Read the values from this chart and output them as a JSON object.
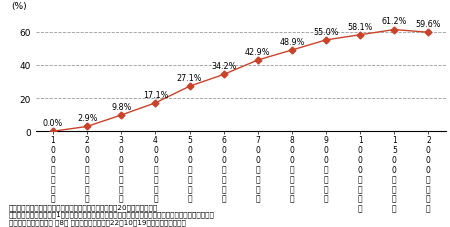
{
  "x_indices": [
    0,
    1,
    2,
    3,
    4,
    5,
    6,
    7,
    8,
    9,
    10,
    11
  ],
  "values": [
    0.0,
    2.9,
    9.8,
    17.1,
    27.1,
    34.2,
    42.9,
    48.9,
    55.0,
    58.1,
    61.2,
    59.6
  ],
  "x_labels": [
    "1\n0\n0\n万\n円\n以\n下",
    "2\n0\n0\n万\n円\n以\n下",
    "3\n0\n0\n万\n円\n以\n下",
    "4\n0\n0\n万\n円\n以\n下",
    "5\n0\n0\n万\n円\n以\n下",
    "6\n0\n0\n万\n円\n以\n下",
    "7\n0\n0\n万\n円\n以\n下",
    "8\n0\n0\n万\n円\n以\n下",
    "9\n0\n0\n万\n円\n以\n下",
    "1\n0\n0\n0\n万\n円\n以\n下",
    "1\n5\n0\n0\n万\n円\n以\n下",
    "2\n0\n0\n0\n万\n円\n以\n下"
  ],
  "line_color": "#c9432b",
  "marker": "D",
  "marker_size": 3.5,
  "ylim": [
    0,
    70
  ],
  "yticks": [
    0,
    20,
    40,
    60
  ],
  "ylabel": "(%)",
  "grid_color": "#999999",
  "grid_style": "--",
  "note_lines": [
    "資料：国税庁「税務統計から見た民間給与の実態（平成20年分）」より。",
    "注）「年末調整を行った1年を通じて勤務した給与所得者」の総数に対する配偶者控除の適用者の割合。",
    "出典）政府税制調査会 第8回 専門家委員会（平成22年10月19日）提出資料より。"
  ],
  "note_fontsize": 5.2,
  "label_fontsize": 5.5,
  "value_label_fontsize": 5.8,
  "axis_fontsize": 6.5
}
